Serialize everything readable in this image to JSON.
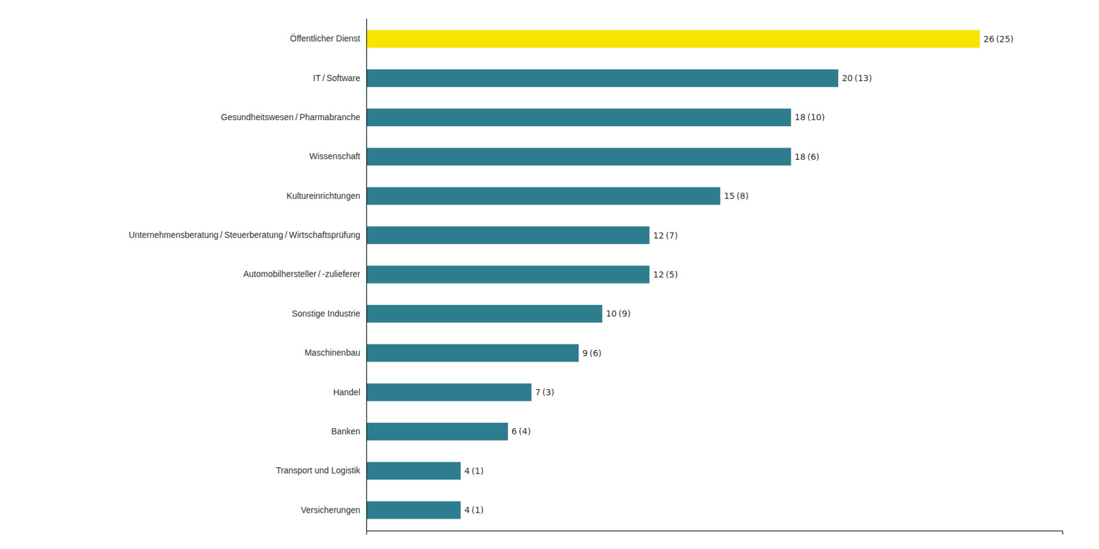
{
  "chart_data": {
    "type": "bar",
    "orientation": "horizontal",
    "categories": [
      "Versicherungen",
      "Transport und Logistik",
      "Banken",
      "Handel",
      "Maschinenbau",
      "Sonstige Industrie",
      "Automobilhersteller / -zulieferer",
      "Unternehmensberatung / Steuerberatung / Wirtschaftsprüfung",
      "Kultureinrichtungen",
      "Wissenschaft",
      "Gesundheitswesen / Pharmabranche",
      "IT / Software",
      "Öffentlicher Dienst"
    ],
    "values": [
      4,
      4,
      6,
      7,
      9,
      10,
      12,
      12,
      15,
      18,
      18,
      20,
      26
    ],
    "value_labels": [
      "4 (1)",
      "4 (1)",
      "6 (4)",
      "7 (3)",
      "9 (6)",
      "10 (9)",
      "12 (5)",
      "12 (7)",
      "15 (8)",
      "18 (6)",
      "18 (10)",
      "20 (13)",
      "26 (25)"
    ],
    "colors": [
      "#2e7d8e",
      "#2e7d8e",
      "#2e7d8e",
      "#2e7d8e",
      "#2e7d8e",
      "#2e7d8e",
      "#2e7d8e",
      "#2e7d8e",
      "#2e7d8e",
      "#2e7d8e",
      "#2e7d8e",
      "#2e7d8e",
      "#f5e500"
    ],
    "xlim": [
      0,
      29.5
    ],
    "xticks": [],
    "grid": false,
    "data_labels": true,
    "tick_labels": "y"
  }
}
